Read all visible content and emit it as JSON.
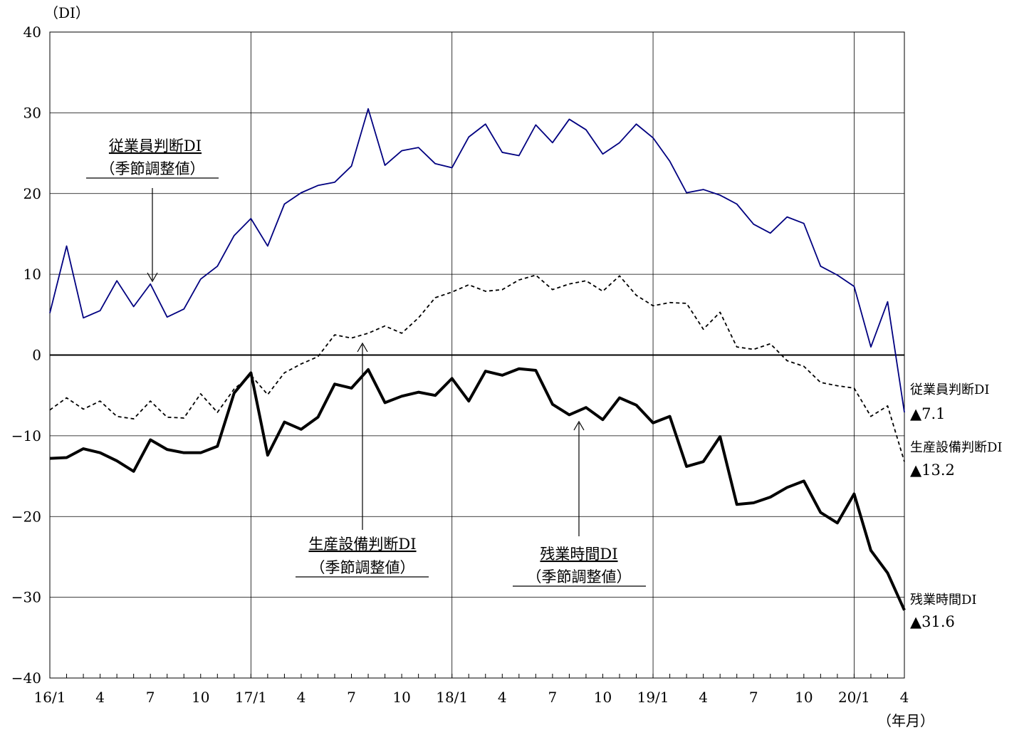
{
  "chart_data": {
    "type": "line",
    "y_unit_label": "（DI）",
    "x_unit_label": "（年月）",
    "ylim": [
      -40,
      40
    ],
    "y_ticks": [
      40,
      30,
      20,
      10,
      0,
      -10,
      -20,
      -30,
      -40
    ],
    "y_tick_labels": [
      "40",
      "30",
      "20",
      "10",
      "0",
      "−10",
      "−20",
      "−30",
      "−40"
    ],
    "x_tick_labels": [
      {
        "index": 0,
        "label": "16/1"
      },
      {
        "index": 3,
        "label": "4"
      },
      {
        "index": 6,
        "label": "7"
      },
      {
        "index": 9,
        "label": "10"
      },
      {
        "index": 12,
        "label": "17/1"
      },
      {
        "index": 15,
        "label": "4"
      },
      {
        "index": 18,
        "label": "7"
      },
      {
        "index": 21,
        "label": "10"
      },
      {
        "index": 24,
        "label": "18/1"
      },
      {
        "index": 27,
        "label": "4"
      },
      {
        "index": 30,
        "label": "7"
      },
      {
        "index": 33,
        "label": "10"
      },
      {
        "index": 36,
        "label": "19/1"
      },
      {
        "index": 39,
        "label": "4"
      },
      {
        "index": 42,
        "label": "7"
      },
      {
        "index": 45,
        "label": "10"
      },
      {
        "index": 48,
        "label": "20/1"
      },
      {
        "index": 51,
        "label": "4"
      }
    ],
    "x_count": 52,
    "grid": true,
    "series": [
      {
        "key": "employee",
        "color": "#000080",
        "style": "solid",
        "values": [
          5.2,
          13.5,
          4.6,
          5.5,
          9.2,
          6.0,
          8.8,
          4.7,
          5.7,
          9.4,
          11.0,
          14.8,
          16.9,
          13.5,
          18.7,
          20.1,
          21.0,
          21.4,
          23.4,
          30.5,
          23.5,
          25.3,
          25.7,
          23.7,
          23.2,
          27.0,
          28.6,
          25.1,
          24.7,
          28.5,
          26.3,
          29.2,
          27.9,
          24.9,
          26.3,
          28.6,
          26.9,
          24.0,
          20.1,
          20.5,
          19.8,
          18.7,
          16.2,
          15.1,
          17.1,
          16.3,
          11.0,
          9.9,
          8.5,
          1.0,
          6.6,
          -7.1
        ]
      },
      {
        "key": "equipment",
        "color": "#000000",
        "style": "dashed",
        "values": [
          -6.8,
          -5.3,
          -6.7,
          -5.7,
          -7.6,
          -7.9,
          -5.7,
          -7.7,
          -7.8,
          -4.8,
          -7.1,
          -4.2,
          -2.5,
          -4.9,
          -2.2,
          -1.1,
          -0.2,
          2.5,
          2.1,
          2.7,
          3.6,
          2.7,
          4.6,
          7.1,
          7.8,
          8.7,
          7.9,
          8.1,
          9.3,
          9.9,
          8.1,
          8.8,
          9.2,
          7.9,
          9.8,
          7.4,
          6.1,
          6.5,
          6.4,
          3.2,
          5.3,
          1.0,
          0.7,
          1.4,
          -0.7,
          -1.4,
          -3.4,
          -3.8,
          -4.1,
          -7.6,
          -6.3,
          -13.2
        ]
      },
      {
        "key": "overtime",
        "color": "#000000",
        "style": "solid-bold",
        "values": [
          -12.8,
          -12.7,
          -11.6,
          -12.1,
          -13.1,
          -14.4,
          -10.5,
          -11.7,
          -12.1,
          -12.1,
          -11.3,
          -4.7,
          -2.2,
          -12.4,
          -8.3,
          -9.2,
          -7.7,
          -3.6,
          -4.1,
          -1.8,
          -5.9,
          -5.1,
          -4.6,
          -5.0,
          -2.9,
          -5.7,
          -2.0,
          -2.5,
          -1.7,
          -1.9,
          -6.1,
          -7.4,
          -6.5,
          -8.0,
          -5.3,
          -6.2,
          -8.4,
          -7.6,
          -13.8,
          -13.2,
          -10.1,
          -18.5,
          -18.3,
          -17.6,
          -16.4,
          -15.6,
          -19.5,
          -20.8,
          -17.2,
          -24.2,
          -27.0,
          -31.6
        ]
      }
    ],
    "annotations": {
      "employee": {
        "line1": "従業員判断DI",
        "line2": "（季節調整値）"
      },
      "equipment": {
        "line1": "生産設備判断DI",
        "line2": "（季節調整値）"
      },
      "overtime": {
        "line1": "残業時間DI",
        "line2": "（季節調整値）"
      }
    },
    "end_labels": {
      "employee": {
        "name": "従業員判断DI",
        "value": "▲7.1"
      },
      "equipment": {
        "name": "生産設備判断DI",
        "value": "▲13.2"
      },
      "overtime": {
        "name": "残業時間DI",
        "value": "▲31.6"
      }
    }
  }
}
